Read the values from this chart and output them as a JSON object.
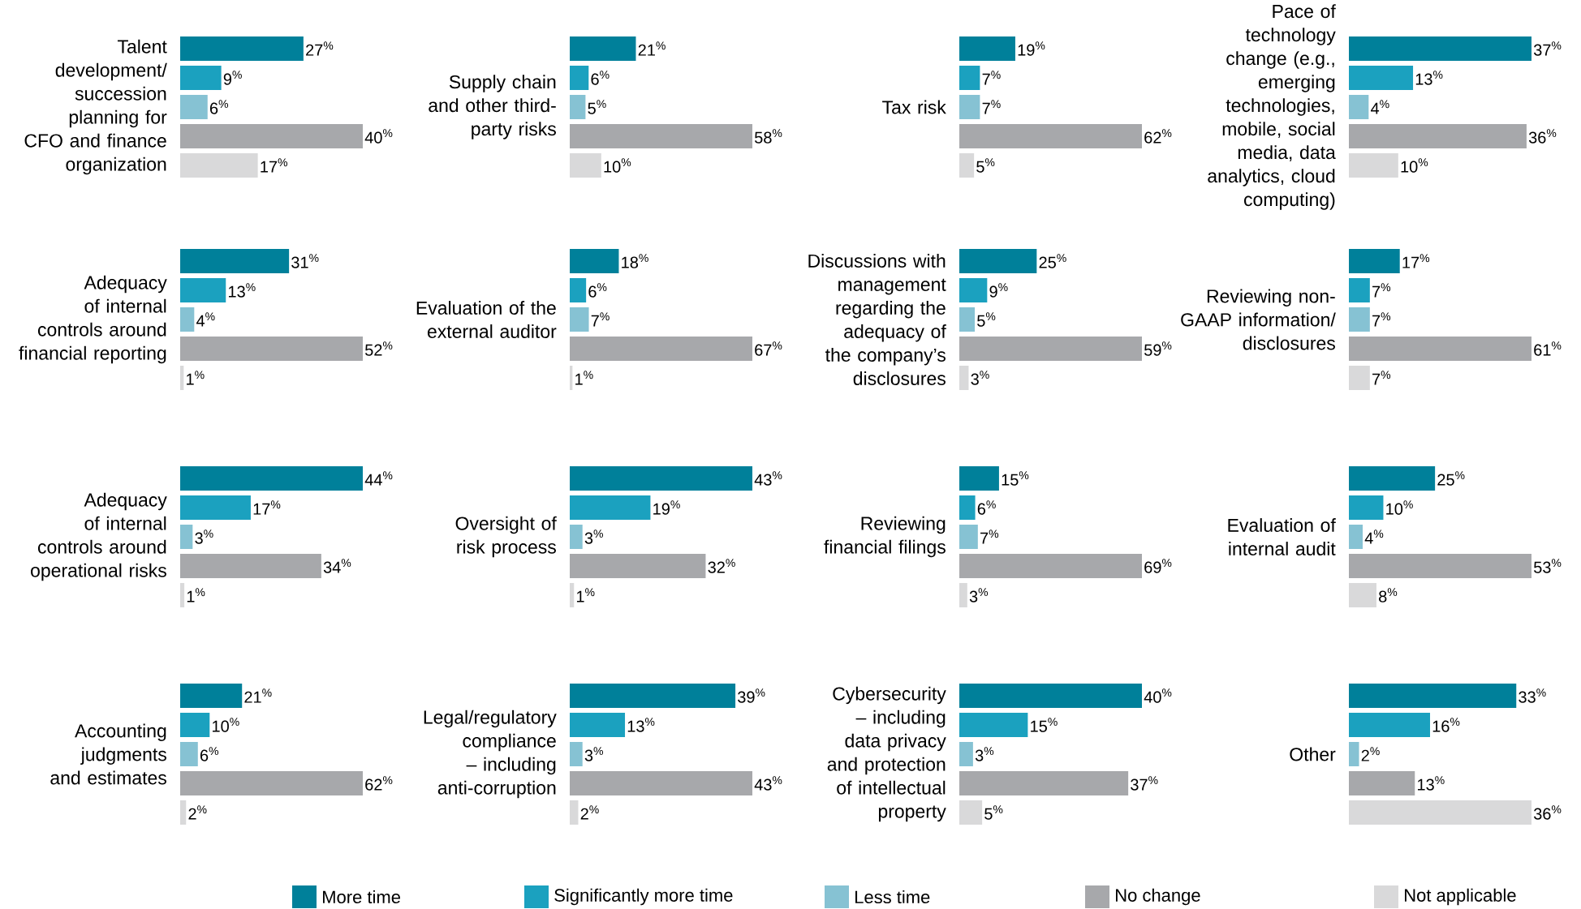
{
  "chart_data": [
    {
      "type": "bar",
      "orientation": "horizontal",
      "title": "Talent development/ succession planning for CFO and finance organization",
      "categories": [
        null
      ],
      "series": [
        {
          "color": "#00809a",
          "values": [
            27
          ],
          "value_labels": [
            "27$^{%}$"
          ]
        },
        {
          "color": "#1ba1bf",
          "values": [
            9
          ],
          "value_labels": [
            "9$^{%}$"
          ]
        },
        {
          "color": "#86c2d3",
          "values": [
            6
          ],
          "value_labels": [
            "6$^{%}$"
          ]
        },
        {
          "color": "#a7a8ab",
          "values": [
            40
          ],
          "value_labels": [
            "40$^{%}$"
          ]
        },
        {
          "color": "#d9d9da",
          "values": [
            17
          ],
          "value_labels": [
            "17$^{%}$"
          ]
        }
      ]
    },
    {
      "type": "bar",
      "orientation": "horizontal",
      "title": "Supply chain and other third-party risks",
      "categories": [
        null
      ],
      "series": [
        {
          "color": "#00809a",
          "values": [
            21
          ],
          "value_labels": [
            "21$^{%}$"
          ]
        },
        {
          "color": "#1ba1bf",
          "values": [
            6
          ],
          "value_labels": [
            "6$^{%}$"
          ]
        },
        {
          "color": "#86c2d3",
          "values": [
            5
          ],
          "value_labels": [
            "5$^{%}$"
          ]
        },
        {
          "color": "#a7a8ab",
          "values": [
            58
          ],
          "value_labels": [
            "58$^{%}$"
          ]
        },
        {
          "color": "#d9d9da",
          "values": [
            10
          ],
          "value_labels": [
            "10$^{%}$"
          ]
        }
      ]
    },
    {
      "type": "bar",
      "orientation": "horizontal",
      "title": "Tax risk",
      "categories": [
        null
      ],
      "series": [
        {
          "color": "#00809a",
          "values": [
            19
          ],
          "value_labels": [
            "19$^{%}$"
          ]
        },
        {
          "color": "#1ba1bf",
          "values": [
            7
          ],
          "value_labels": [
            "7$^{%}$"
          ]
        },
        {
          "color": "#86c2d3",
          "values": [
            7
          ],
          "value_labels": [
            "7$^{%}$"
          ]
        },
        {
          "color": "#a7a8ab",
          "values": [
            62
          ],
          "value_labels": [
            "62$^{%}$"
          ]
        },
        {
          "color": "#d9d9da",
          "values": [
            5
          ],
          "value_labels": [
            "5$^{%}$"
          ]
        }
      ]
    },
    {
      "type": "bar",
      "orientation": "horizontal",
      "title": "Pace of technology change (e.g., emerging technologies, mobile, social media, data analytics, cloud computing)",
      "categories": [
        null
      ],
      "series": [
        {
          "color": "#00809a",
          "values": [
            37
          ],
          "value_labels": [
            "37$^{%}$"
          ]
        },
        {
          "color": "#1ba1bf",
          "values": [
            13
          ],
          "value_labels": [
            "13$^{%}$"
          ]
        },
        {
          "color": "#86c2d3",
          "values": [
            4
          ],
          "value_labels": [
            "4$^{%}$"
          ]
        },
        {
          "color": "#a7a8ab",
          "values": [
            36
          ],
          "value_labels": [
            "36$^{%}$"
          ]
        },
        {
          "color": "#d9d9da",
          "values": [
            10
          ],
          "value_labels": [
            "10$^{%}$"
          ]
        }
      ]
    },
    {
      "type": "bar",
      "orientation": "horizontal",
      "title": "Adequacy of internal controls around financial reporting",
      "categories": [
        null
      ],
      "series": [
        {
          "color": "#00809a",
          "values": [
            31
          ],
          "value_labels": [
            "31$^{%}$"
          ]
        },
        {
          "color": "#1ba1bf",
          "values": [
            13
          ],
          "value_labels": [
            "13$^{%}$"
          ]
        },
        {
          "color": "#86c2d3",
          "values": [
            4
          ],
          "value_labels": [
            "4$^{%}$"
          ]
        },
        {
          "color": "#a7a8ab",
          "values": [
            52
          ],
          "value_labels": [
            "52$^{%}$"
          ]
        },
        {
          "color": "#d9d9da",
          "values": [
            1
          ],
          "value_labels": [
            "1$^{%}$"
          ]
        }
      ]
    },
    {
      "type": "bar",
      "orientation": "horizontal",
      "title": "Evaluation of the external auditor",
      "categories": [
        null
      ],
      "series": [
        {
          "color": "#00809a",
          "values": [
            18
          ],
          "value_labels": [
            "18$^{%}$"
          ]
        },
        {
          "color": "#1ba1bf",
          "values": [
            6
          ],
          "value_labels": [
            "6$^{%}$"
          ]
        },
        {
          "color": "#86c2d3",
          "values": [
            7
          ],
          "value_labels": [
            "7$^{%}$"
          ]
        },
        {
          "color": "#a7a8ab",
          "values": [
            67
          ],
          "value_labels": [
            "67$^{%}$"
          ]
        },
        {
          "color": "#d9d9da",
          "values": [
            1
          ],
          "value_labels": [
            "1$^{%}$"
          ]
        }
      ]
    },
    {
      "type": "bar",
      "orientation": "horizontal",
      "title": "Discussions with management regarding the adequacy of the company’s disclosures",
      "categories": [
        null
      ],
      "series": [
        {
          "color": "#00809a",
          "values": [
            25
          ],
          "value_labels": [
            "25$^{%}$"
          ]
        },
        {
          "color": "#1ba1bf",
          "values": [
            9
          ],
          "value_labels": [
            "9$^{%}$"
          ]
        },
        {
          "color": "#86c2d3",
          "values": [
            5
          ],
          "value_labels": [
            "5$^{%}$"
          ]
        },
        {
          "color": "#a7a8ab",
          "values": [
            59
          ],
          "value_labels": [
            "59$^{%}$"
          ]
        },
        {
          "color": "#d9d9da",
          "values": [
            3
          ],
          "value_labels": [
            "3$^{%}$"
          ]
        }
      ]
    },
    {
      "type": "bar",
      "orientation": "horizontal",
      "title": "Reviewing non-GAAP information/ disclosures",
      "categories": [
        null
      ],
      "series": [
        {
          "color": "#00809a",
          "values": [
            17
          ],
          "value_labels": [
            "17$^{%}$"
          ]
        },
        {
          "color": "#1ba1bf",
          "values": [
            7
          ],
          "value_labels": [
            "7$^{%}$"
          ]
        },
        {
          "color": "#86c2d3",
          "values": [
            7
          ],
          "value_labels": [
            "7$^{%}$"
          ]
        },
        {
          "color": "#a7a8ab",
          "values": [
            61
          ],
          "value_labels": [
            "61$^{%}$"
          ]
        },
        {
          "color": "#d9d9da",
          "values": [
            7
          ],
          "value_labels": [
            "7$^{%}$"
          ]
        }
      ]
    },
    {
      "type": "bar",
      "orientation": "horizontal",
      "title": "Adequacy of internal controls around operational risks",
      "categories": [
        null
      ],
      "series": [
        {
          "color": "#00809a",
          "values": [
            44
          ],
          "value_labels": [
            "44$^{%}$"
          ]
        },
        {
          "color": "#1ba1bf",
          "values": [
            17
          ],
          "value_labels": [
            "17$^{%}$"
          ]
        },
        {
          "color": "#86c2d3",
          "values": [
            3
          ],
          "value_labels": [
            "3$^{%}$"
          ]
        },
        {
          "color": "#a7a8ab",
          "values": [
            34
          ],
          "value_labels": [
            "34$^{%}$"
          ]
        },
        {
          "color": "#d9d9da",
          "values": [
            1
          ],
          "value_labels": [
            "1$^{%}$"
          ]
        }
      ]
    },
    {
      "type": "bar",
      "orientation": "horizontal",
      "title": "Oversight of risk process",
      "categories": [
        null
      ],
      "series": [
        {
          "color": "#00809a",
          "values": [
            43
          ],
          "value_labels": [
            "43$^{%}$"
          ]
        },
        {
          "color": "#1ba1bf",
          "values": [
            19
          ],
          "value_labels": [
            "19$^{%}$"
          ]
        },
        {
          "color": "#86c2d3",
          "values": [
            3
          ],
          "value_labels": [
            "3$^{%}$"
          ]
        },
        {
          "color": "#a7a8ab",
          "values": [
            32
          ],
          "value_labels": [
            "32$^{%}$"
          ]
        },
        {
          "color": "#d9d9da",
          "values": [
            1
          ],
          "value_labels": [
            "1$^{%}$"
          ]
        }
      ]
    },
    {
      "type": "bar",
      "orientation": "horizontal",
      "title": "Reviewing financial filings",
      "categories": [
        null
      ],
      "series": [
        {
          "color": "#00809a",
          "values": [
            15
          ],
          "value_labels": [
            "15$^{%}$"
          ]
        },
        {
          "color": "#1ba1bf",
          "values": [
            6
          ],
          "value_labels": [
            "6$^{%}$"
          ]
        },
        {
          "color": "#86c2d3",
          "values": [
            7
          ],
          "value_labels": [
            "7$^{%}$"
          ]
        },
        {
          "color": "#a7a8ab",
          "values": [
            69
          ],
          "value_labels": [
            "69$^{%}$"
          ]
        },
        {
          "color": "#d9d9da",
          "values": [
            3
          ],
          "value_labels": [
            "3$^{%}$"
          ]
        }
      ]
    },
    {
      "type": "bar",
      "orientation": "horizontal",
      "title": "Evaluation of internal audit",
      "categories": [
        null
      ],
      "series": [
        {
          "color": "#00809a",
          "values": [
            25
          ],
          "value_labels": [
            "25$^{%}$"
          ]
        },
        {
          "color": "#1ba1bf",
          "values": [
            10
          ],
          "value_labels": [
            "10$^{%}$"
          ]
        },
        {
          "color": "#86c2d3",
          "values": [
            4
          ],
          "value_labels": [
            "4$^{%}$"
          ]
        },
        {
          "color": "#a7a8ab",
          "values": [
            53
          ],
          "value_labels": [
            "53$^{%}$"
          ]
        },
        {
          "color": "#d9d9da",
          "values": [
            8
          ],
          "value_labels": [
            "8$^{%}$"
          ]
        }
      ]
    },
    {
      "type": "bar",
      "orientation": "horizontal",
      "title": "Accounting judgments and estimates",
      "categories": [
        null
      ],
      "series": [
        {
          "color": "#00809a",
          "values": [
            21
          ],
          "value_labels": [
            "21$^{%}$"
          ]
        },
        {
          "color": "#1ba1bf",
          "values": [
            10
          ],
          "value_labels": [
            "10$^{%}$"
          ]
        },
        {
          "color": "#86c2d3",
          "values": [
            6
          ],
          "value_labels": [
            "6$^{%}$"
          ]
        },
        {
          "color": "#a7a8ab",
          "values": [
            62
          ],
          "value_labels": [
            "62$^{%}$"
          ]
        },
        {
          "color": "#d9d9da",
          "values": [
            2
          ],
          "value_labels": [
            "2$^{%}$"
          ]
        }
      ]
    },
    {
      "type": "bar",
      "orientation": "horizontal",
      "title": "Legal/regulatory compliance – including anti-corruption",
      "categories": [
        null
      ],
      "series": [
        {
          "color": "#00809a",
          "values": [
            39
          ],
          "value_labels": [
            "39$^{%}$"
          ]
        },
        {
          "color": "#1ba1bf",
          "values": [
            13
          ],
          "value_labels": [
            "13$^{%}$"
          ]
        },
        {
          "color": "#86c2d3",
          "values": [
            3
          ],
          "value_labels": [
            "3$^{%}$"
          ]
        },
        {
          "color": "#a7a8ab",
          "values": [
            43
          ],
          "value_labels": [
            "43$^{%}$"
          ]
        },
        {
          "color": "#d9d9da",
          "values": [
            2
          ],
          "value_labels": [
            "2$^{%}$"
          ]
        }
      ]
    },
    {
      "type": "bar",
      "orientation": "horizontal",
      "title": "Cybersecurity – including data privacy and protection of intellectual property",
      "categories": [
        null
      ],
      "series": [
        {
          "color": "#00809a",
          "values": [
            40
          ],
          "value_labels": [
            "40$^{%}$"
          ]
        },
        {
          "color": "#1ba1bf",
          "values": [
            15
          ],
          "value_labels": [
            "15$^{%}$"
          ]
        },
        {
          "color": "#86c2d3",
          "values": [
            3
          ],
          "value_labels": [
            "3$^{%}$"
          ]
        },
        {
          "color": "#a7a8ab",
          "values": [
            37
          ],
          "value_labels": [
            "37$^{%}$"
          ]
        },
        {
          "color": "#d9d9da",
          "values": [
            5
          ],
          "value_labels": [
            "5$^{%}$"
          ]
        }
      ]
    },
    {
      "type": "bar",
      "orientation": "horizontal",
      "title": "Other",
      "categories": [
        null
      ],
      "legend": "bottom",
      "series": [
        {
          "name": "More time",
          "color": "#00809a",
          "values": [
            33
          ],
          "value_labels": [
            "33$^{%}$"
          ]
        },
        {
          "name": "Significantly more time",
          "color": "#1ba1bf",
          "values": [
            16
          ],
          "value_labels": [
            "16$^{%}$"
          ]
        },
        {
          "name": "Less time",
          "color": "#86c2d3",
          "values": [
            2
          ],
          "value_labels": [
            "2$^{%}$"
          ]
        },
        {
          "name": "No change",
          "color": "#a7a8ab",
          "values": [
            13
          ],
          "value_labels": [
            "13$^{%}$"
          ]
        },
        {
          "name": "Not applicable",
          "color": "#d9d9da",
          "values": [
            36
          ],
          "value_labels": [
            "36$^{%}$"
          ]
        }
      ]
    }
  ]
}
